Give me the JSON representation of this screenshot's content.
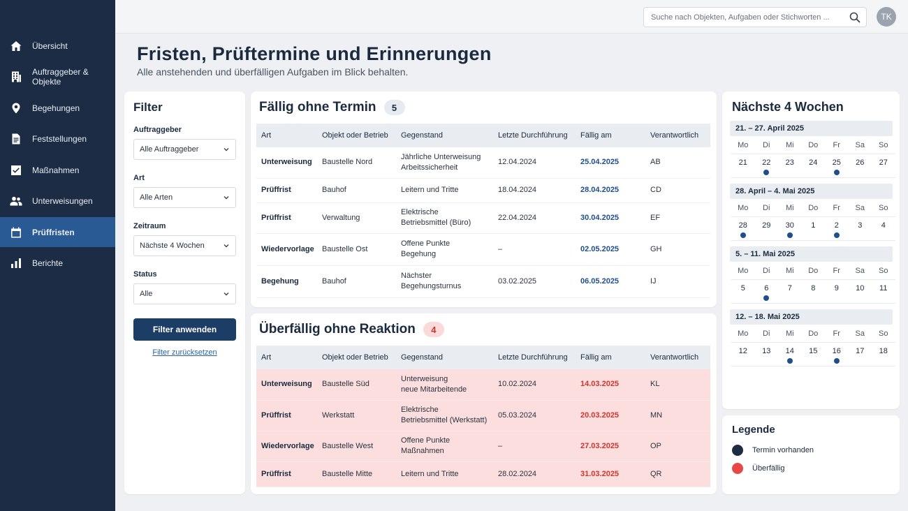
{
  "sidebar": {
    "items": [
      {
        "label": "Übersicht",
        "icon": "home-icon"
      },
      {
        "label": "Auftraggeber & Objekte",
        "icon": "building-icon"
      },
      {
        "label": "Begehungen",
        "icon": "location-pin-icon"
      },
      {
        "label": "Feststellungen",
        "icon": "document-icon"
      },
      {
        "label": "Maßnahmen",
        "icon": "checkbox-icon"
      },
      {
        "label": "Unterweisungen",
        "icon": "people-icon"
      },
      {
        "label": "Prüffristen",
        "icon": "calendar-icon",
        "active": true
      },
      {
        "label": "Berichte",
        "icon": "bar-chart-icon"
      }
    ]
  },
  "topbar": {
    "search_placeholder": "Suche nach Objekten, Aufgaben oder Stichworten ...",
    "avatar_initials": "TK"
  },
  "header": {
    "title": "Fristen, Prüftermine und Erinnerungen",
    "subtitle": "Alle anstehenden und überfälligen Aufgaben im Blick behalten."
  },
  "filter": {
    "title": "Filter",
    "fields": [
      {
        "label": "Auftraggeber",
        "value": "Alle Auftraggeber"
      },
      {
        "label": "Art",
        "value": "Alle Arten"
      },
      {
        "label": "Zeitraum",
        "value": "Nächste 4 Wochen"
      },
      {
        "label": "Status",
        "value": "Alle"
      }
    ],
    "apply_label": "Filter anwenden",
    "reset_label": "Filter zurücksetzen"
  },
  "columns": [
    "Art",
    "Objekt oder Betrieb",
    "Gegenstand",
    "Letzte Durchführung",
    "Fällig am",
    "Verantwortlich"
  ],
  "due_without_date": {
    "title": "Fällig ohne Termin",
    "count": "5",
    "rows": [
      [
        "Unterweisung",
        "Baustelle Nord",
        "Jährliche Unterweisung\nArbeitssicherheit",
        "12.04.2024",
        "25.04.2025",
        "AB"
      ],
      [
        "Prüffrist",
        "Bauhof",
        "Leitern und Tritte",
        "18.04.2024",
        "28.04.2025",
        "CD"
      ],
      [
        "Prüffrist",
        "Verwaltung",
        "Elektrische\nBetriebsmittel (Büro)",
        "22.04.2024",
        "30.04.2025",
        "EF"
      ],
      [
        "Wiedervorlage",
        "Baustelle Ost",
        "Offene Punkte\nBegehung",
        "–",
        "02.05.2025",
        "GH"
      ],
      [
        "Begehung",
        "Bauhof",
        "Nächster\nBegehungsturnus",
        "03.02.2025",
        "06.05.2025",
        "IJ"
      ]
    ]
  },
  "overdue": {
    "title": "Überfällig ohne Reaktion",
    "count": "4",
    "rows": [
      [
        "Unterweisung",
        "Baustelle Süd",
        "Unterweisung\nneue Mitarbeitende",
        "10.02.2024",
        "14.03.2025",
        "KL"
      ],
      [
        "Prüffrist",
        "Werkstatt",
        "Elektrische\nBetriebsmittel (Werkstatt)",
        "05.03.2024",
        "20.03.2025",
        "MN"
      ],
      [
        "Wiedervorlage",
        "Baustelle West",
        "Offene Punkte\nMaßnahmen",
        "–",
        "27.03.2025",
        "OP"
      ],
      [
        "Prüffrist",
        "Baustelle Mitte",
        "Leitern und Tritte",
        "28.02.2024",
        "31.03.2025",
        "QR"
      ]
    ]
  },
  "calendar": {
    "title": "Nächste 4 Wochen",
    "weekdays": [
      "Mo",
      "Di",
      "Mi",
      "Do",
      "Fr",
      "Sa",
      "So"
    ],
    "weeks": [
      {
        "label": "21. – 27. April 2025",
        "days": [
          "21",
          "22",
          "23",
          "24",
          "25",
          "26",
          "27"
        ],
        "dots": [
          false,
          true,
          false,
          false,
          true,
          false,
          false
        ]
      },
      {
        "label": "28. April – 4. Mai 2025",
        "days": [
          "28",
          "29",
          "30",
          "1",
          "2",
          "3",
          "4"
        ],
        "dots": [
          true,
          false,
          true,
          false,
          true,
          false,
          false
        ]
      },
      {
        "label": "5. – 11. Mai 2025",
        "days": [
          "5",
          "6",
          "7",
          "8",
          "9",
          "10",
          "11"
        ],
        "dots": [
          false,
          true,
          false,
          false,
          false,
          false,
          false
        ]
      },
      {
        "label": "12. – 18. Mai 2025",
        "days": [
          "12",
          "13",
          "14",
          "15",
          "16",
          "17",
          "18"
        ],
        "dots": [
          false,
          false,
          true,
          false,
          true,
          false,
          false
        ]
      }
    ]
  },
  "legend": {
    "title": "Legende",
    "items": [
      {
        "label": "Termin vorhanden",
        "color": "#1c2c44"
      },
      {
        "label": "Überfällig",
        "color": "#e8474a"
      }
    ]
  }
}
